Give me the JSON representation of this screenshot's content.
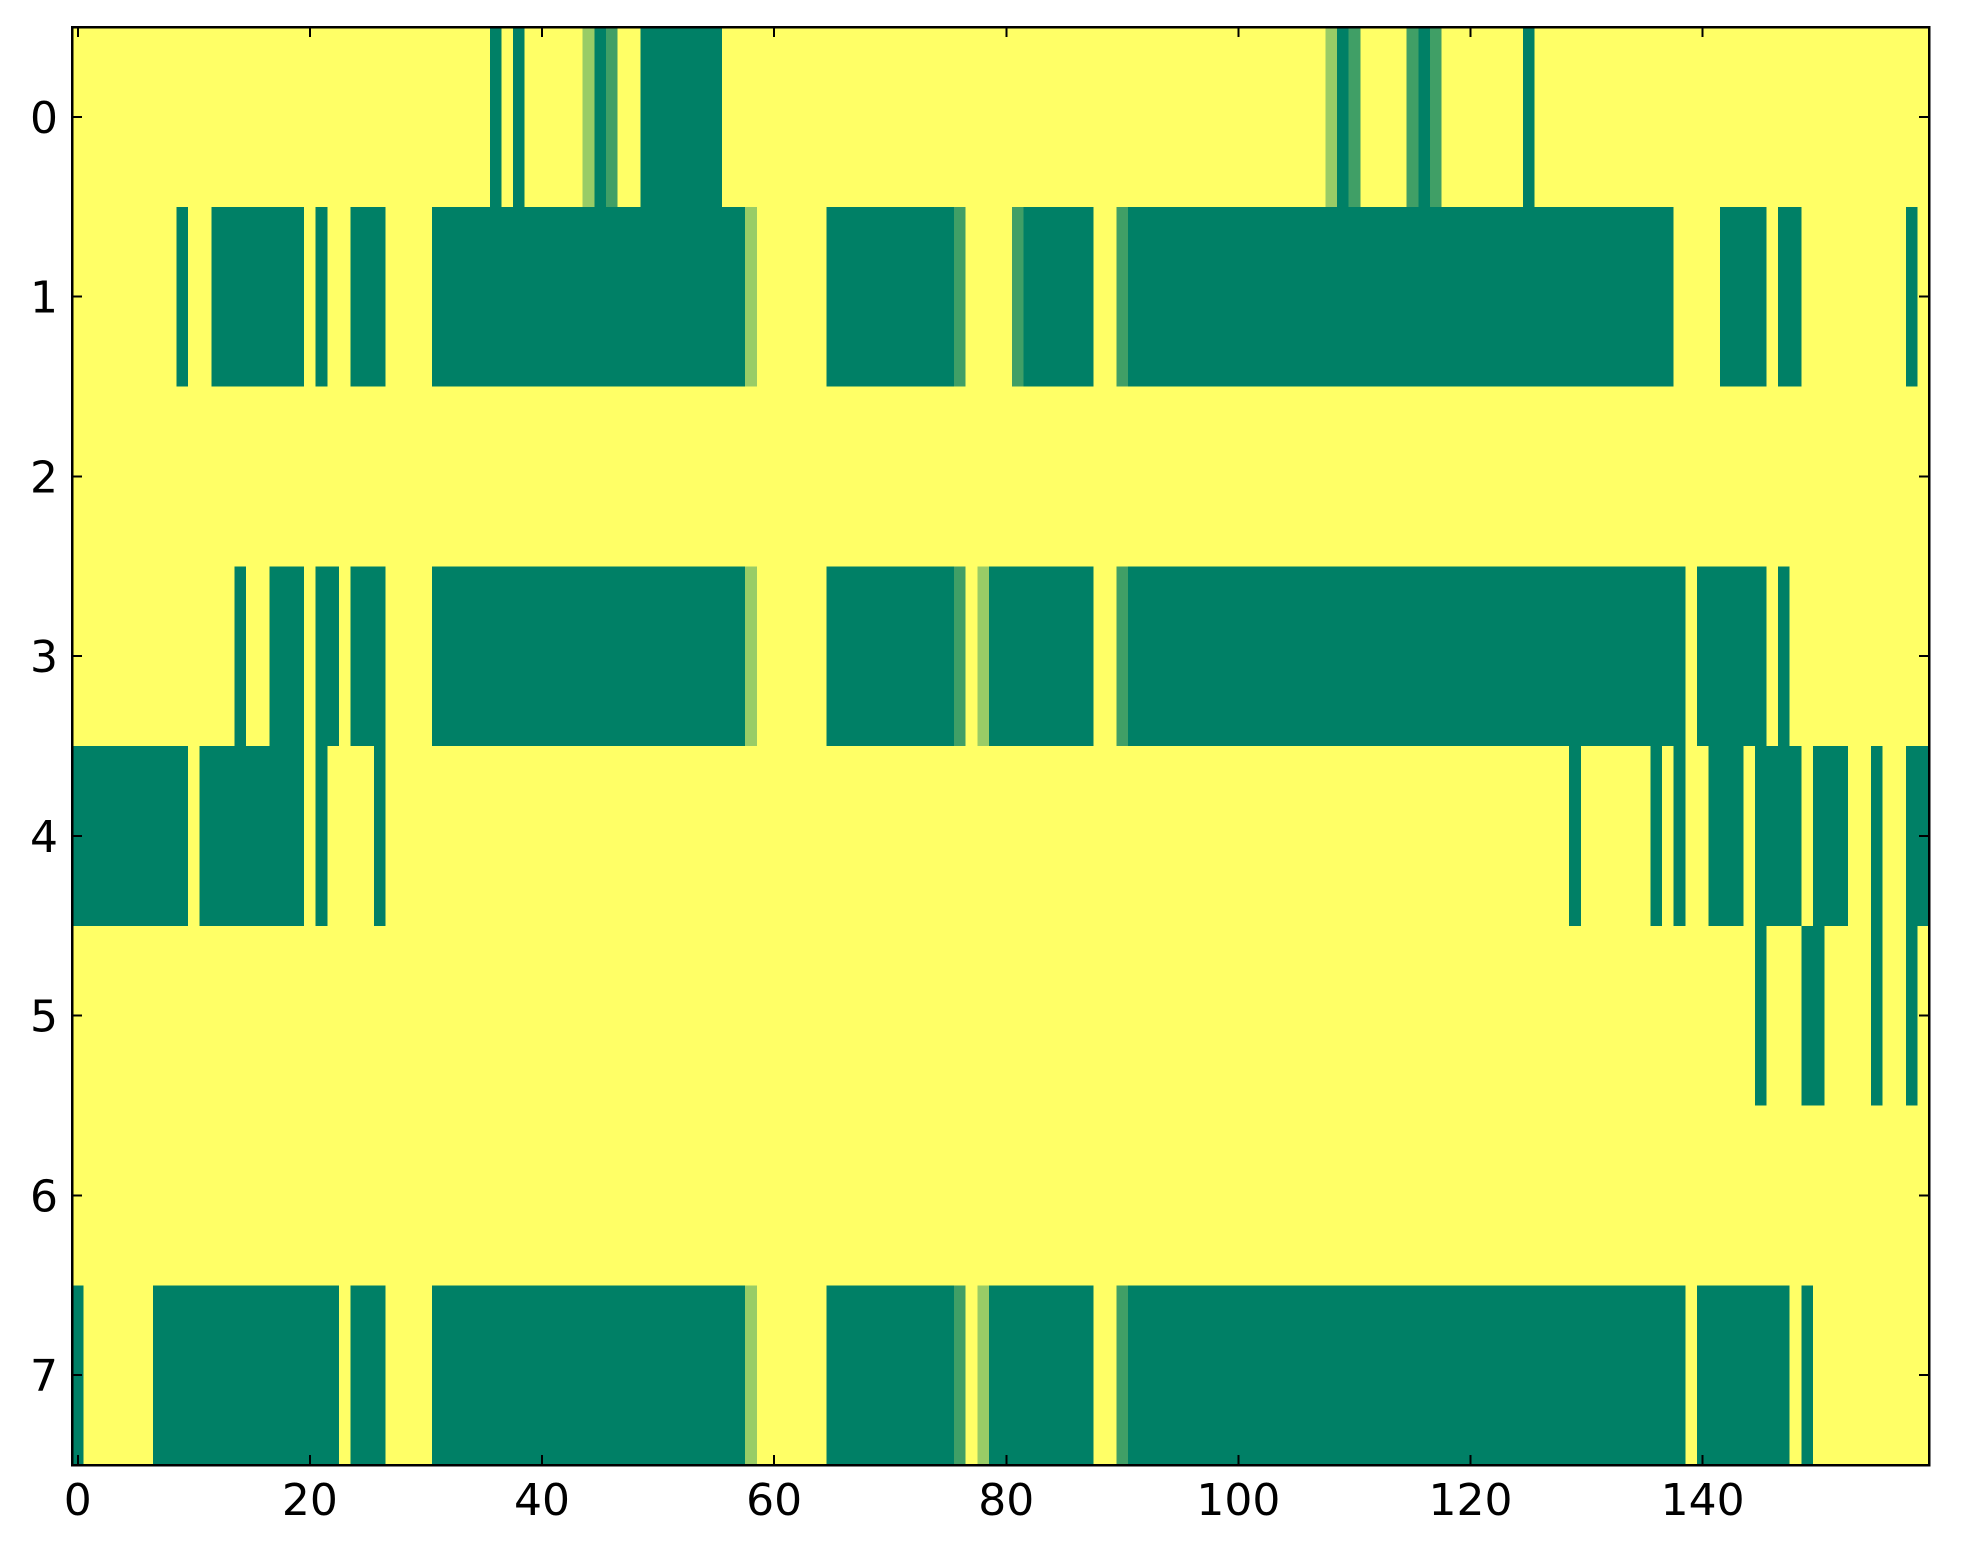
{
  "chart_data": {
    "type": "heatmap",
    "colormap": "summer",
    "xlim": [
      -0.5,
      159.5
    ],
    "ylim": [
      7.5,
      -0.5
    ],
    "xticks": [
      0,
      20,
      40,
      60,
      80,
      100,
      120,
      140
    ],
    "yticks": [
      0,
      1,
      2,
      3,
      4,
      5,
      6,
      7
    ],
    "z": [
      [
        1,
        1,
        1,
        1,
        1,
        1,
        1,
        1,
        1,
        1,
        1,
        1,
        1,
        1,
        1,
        1,
        1,
        1,
        1,
        1,
        1,
        1,
        1,
        1,
        1,
        1,
        1,
        1,
        1,
        1,
        1,
        1,
        1,
        1,
        1,
        1,
        0,
        1,
        0,
        1,
        1,
        1,
        1,
        1,
        0.6,
        0,
        0.25,
        1,
        1,
        0,
        0,
        0,
        0,
        0,
        0,
        0,
        1,
        1,
        1,
        1,
        1,
        1,
        1,
        1,
        1,
        1,
        1,
        1,
        1,
        1,
        1,
        1,
        1,
        1,
        1,
        1,
        1,
        1,
        1,
        1,
        1,
        1,
        1,
        1,
        1,
        1,
        1,
        1,
        1,
        1,
        1,
        1,
        1,
        1,
        1,
        1,
        1,
        1,
        1,
        1,
        1,
        1,
        1,
        1,
        1,
        1,
        1,
        1,
        0.6,
        0,
        0.25,
        1,
        1,
        1,
        1,
        0.25,
        0,
        0.25,
        1,
        1,
        1,
        1,
        1,
        1,
        1,
        0,
        1,
        1,
        1,
        1,
        1,
        1,
        1,
        1,
        1,
        1,
        1,
        1,
        1,
        1,
        1,
        1,
        1,
        1,
        1,
        1,
        1,
        1,
        1,
        1,
        1,
        1,
        1,
        1,
        1,
        1,
        1,
        1,
        1,
        1
      ],
      [
        1,
        1,
        1,
        1,
        1,
        1,
        1,
        1,
        1,
        0,
        1,
        1,
        0,
        0,
        0,
        0,
        0,
        0,
        0,
        0,
        1,
        0,
        1,
        1,
        0,
        0,
        0,
        1,
        1,
        1,
        1,
        0,
        0,
        0,
        0,
        0,
        0,
        0,
        0,
        0,
        0,
        0,
        0,
        0,
        0,
        0,
        0,
        0,
        0,
        0,
        0,
        0,
        0,
        0,
        0,
        0,
        0,
        0,
        0.6,
        1,
        1,
        1,
        1,
        1,
        1,
        0,
        0,
        0,
        0,
        0,
        0,
        0,
        0,
        0,
        0,
        0,
        0.25,
        1,
        1,
        1,
        1,
        0.25,
        0,
        0,
        0,
        0,
        0,
        0,
        1,
        1,
        0.25,
        0,
        0,
        0,
        0,
        0,
        0,
        0,
        0,
        0,
        0,
        0,
        0,
        0,
        0,
        0,
        0,
        0,
        0,
        0,
        0,
        0,
        0,
        0,
        0,
        0,
        0,
        0,
        0,
        0,
        0,
        0,
        0,
        0,
        0,
        0,
        0,
        0,
        0,
        0,
        0,
        0,
        0,
        0,
        0,
        0,
        0,
        0,
        1,
        1,
        1,
        1,
        0,
        0,
        0,
        0,
        1,
        0,
        0,
        1,
        1,
        1,
        1,
        1,
        1,
        1,
        1,
        1,
        0,
        1
      ],
      [
        1,
        1,
        1,
        1,
        1,
        1,
        1,
        1,
        1,
        1,
        1,
        1,
        1,
        1,
        1,
        1,
        1,
        1,
        1,
        1,
        1,
        1,
        1,
        1,
        1,
        1,
        1,
        1,
        1,
        1,
        1,
        1,
        1,
        1,
        1,
        1,
        1,
        1,
        1,
        1,
        1,
        1,
        1,
        1,
        1,
        1,
        1,
        1,
        1,
        1,
        1,
        1,
        1,
        1,
        1,
        1,
        1,
        1,
        1,
        1,
        1,
        1,
        1,
        1,
        1,
        1,
        1,
        1,
        1,
        1,
        1,
        1,
        1,
        1,
        1,
        1,
        1,
        1,
        1,
        1,
        1,
        1,
        1,
        1,
        1,
        1,
        1,
        1,
        1,
        1,
        1,
        1,
        1,
        1,
        1,
        1,
        1,
        1,
        1,
        1,
        1,
        1,
        1,
        1,
        1,
        1,
        1,
        1,
        1,
        1,
        1,
        1,
        1,
        1,
        1,
        1,
        1,
        1,
        1,
        1,
        1,
        1,
        1,
        1,
        1,
        1,
        1,
        1,
        1,
        1,
        1,
        1,
        1,
        1,
        1,
        1,
        1,
        1,
        1,
        1,
        1,
        1,
        1,
        1,
        1,
        1,
        1,
        1,
        1,
        1,
        1,
        1,
        1,
        1,
        1,
        1,
        1,
        1,
        1,
        1
      ],
      [
        1,
        1,
        1,
        1,
        1,
        1,
        1,
        1,
        1,
        1,
        1,
        1,
        1,
        1,
        0,
        1,
        1,
        0,
        0,
        0,
        1,
        0,
        0,
        1,
        0,
        0,
        0,
        1,
        1,
        1,
        1,
        0,
        0,
        0,
        0,
        0,
        0,
        0,
        0,
        0,
        0,
        0,
        0,
        0,
        0,
        0,
        0,
        0,
        0,
        0,
        0,
        0,
        0,
        0,
        0,
        0,
        0,
        0,
        0.6,
        1,
        1,
        1,
        1,
        1,
        1,
        0,
        0,
        0,
        0,
        0,
        0,
        0,
        0,
        0,
        0,
        0,
        0.25,
        1,
        0.6,
        0,
        0,
        0,
        0,
        0,
        0,
        0,
        0,
        0,
        1,
        1,
        0.25,
        0,
        0,
        0,
        0,
        0,
        0,
        0,
        0,
        0,
        0,
        0,
        0,
        0,
        0,
        0,
        0,
        0,
        0,
        0,
        0,
        0,
        0,
        0,
        0,
        0,
        0,
        0,
        0,
        0,
        0,
        0,
        0,
        0,
        0,
        0,
        0,
        0,
        0,
        0,
        0,
        0,
        0,
        0,
        0,
        0,
        0,
        0,
        0,
        1,
        0,
        0,
        0,
        0,
        0,
        0,
        1,
        0,
        1,
        1,
        1,
        1,
        1,
        1,
        1,
        1,
        1,
        1,
        1,
        1
      ],
      [
        0,
        0,
        0,
        0,
        0,
        0,
        0,
        0,
        0,
        0,
        1,
        0,
        0,
        0,
        0,
        0,
        0,
        0,
        0,
        0,
        1,
        0,
        1,
        1,
        1,
        1,
        0,
        1,
        1,
        1,
        1,
        1,
        1,
        1,
        1,
        1,
        1,
        1,
        1,
        1,
        1,
        1,
        1,
        1,
        1,
        1,
        1,
        1,
        1,
        1,
        1,
        1,
        1,
        1,
        1,
        1,
        1,
        1,
        1,
        1,
        1,
        1,
        1,
        1,
        1,
        1,
        1,
        1,
        1,
        1,
        1,
        1,
        1,
        1,
        1,
        1,
        1,
        1,
        1,
        1,
        1,
        1,
        1,
        1,
        1,
        1,
        1,
        1,
        1,
        1,
        1,
        1,
        1,
        1,
        1,
        1,
        1,
        1,
        1,
        1,
        1,
        1,
        1,
        1,
        1,
        1,
        1,
        1,
        1,
        1,
        1,
        1,
        1,
        1,
        1,
        1,
        1,
        1,
        1,
        1,
        1,
        1,
        1,
        1,
        1,
        1,
        1,
        1,
        1,
        0,
        1,
        1,
        1,
        1,
        1,
        1,
        0,
        1,
        0,
        1,
        1,
        0,
        0,
        0,
        1,
        0,
        0,
        0,
        0,
        1,
        0,
        0,
        0,
        1,
        1,
        0,
        1,
        1,
        0,
        0
      ],
      [
        1,
        1,
        1,
        1,
        1,
        1,
        1,
        1,
        1,
        1,
        1,
        1,
        1,
        1,
        1,
        1,
        1,
        1,
        1,
        1,
        1,
        1,
        1,
        1,
        1,
        1,
        1,
        1,
        1,
        1,
        1,
        1,
        1,
        1,
        1,
        1,
        1,
        1,
        1,
        1,
        1,
        1,
        1,
        1,
        1,
        1,
        1,
        1,
        1,
        1,
        1,
        1,
        1,
        1,
        1,
        1,
        1,
        1,
        1,
        1,
        1,
        1,
        1,
        1,
        1,
        1,
        1,
        1,
        1,
        1,
        1,
        1,
        1,
        1,
        1,
        1,
        1,
        1,
        1,
        1,
        1,
        1,
        1,
        1,
        1,
        1,
        1,
        1,
        1,
        1,
        1,
        1,
        1,
        1,
        1,
        1,
        1,
        1,
        1,
        1,
        1,
        1,
        1,
        1,
        1,
        1,
        1,
        1,
        1,
        1,
        1,
        1,
        1,
        1,
        1,
        1,
        1,
        1,
        1,
        1,
        1,
        1,
        1,
        1,
        1,
        1,
        1,
        1,
        1,
        1,
        1,
        1,
        1,
        1,
        1,
        1,
        1,
        1,
        1,
        1,
        1,
        1,
        1,
        1,
        1,
        0,
        1,
        1,
        1,
        0,
        0,
        1,
        1,
        1,
        1,
        0,
        1,
        1,
        0,
        1
      ],
      [
        1,
        1,
        1,
        1,
        1,
        1,
        1,
        1,
        1,
        1,
        1,
        1,
        1,
        1,
        1,
        1,
        1,
        1,
        1,
        1,
        1,
        1,
        1,
        1,
        1,
        1,
        1,
        1,
        1,
        1,
        1,
        1,
        1,
        1,
        1,
        1,
        1,
        1,
        1,
        1,
        1,
        1,
        1,
        1,
        1,
        1,
        1,
        1,
        1,
        1,
        1,
        1,
        1,
        1,
        1,
        1,
        1,
        1,
        1,
        1,
        1,
        1,
        1,
        1,
        1,
        1,
        1,
        1,
        1,
        1,
        1,
        1,
        1,
        1,
        1,
        1,
        1,
        1,
        1,
        1,
        1,
        1,
        1,
        1,
        1,
        1,
        1,
        1,
        1,
        1,
        1,
        1,
        1,
        1,
        1,
        1,
        1,
        1,
        1,
        1,
        1,
        1,
        1,
        1,
        1,
        1,
        1,
        1,
        1,
        1,
        1,
        1,
        1,
        1,
        1,
        1,
        1,
        1,
        1,
        1,
        1,
        1,
        1,
        1,
        1,
        1,
        1,
        1,
        1,
        1,
        1,
        1,
        1,
        1,
        1,
        1,
        1,
        1,
        1,
        1,
        1,
        1,
        1,
        1,
        1,
        1,
        1,
        1,
        1,
        1,
        1,
        1,
        1,
        1,
        1,
        1,
        1,
        1,
        1,
        1
      ],
      [
        0,
        1,
        1,
        1,
        1,
        1,
        1,
        0,
        0,
        0,
        0,
        0,
        0,
        0,
        0,
        0,
        0,
        0,
        0,
        0,
        0,
        0,
        0,
        1,
        0,
        0,
        0,
        1,
        1,
        1,
        1,
        0,
        0,
        0,
        0,
        0,
        0,
        0,
        0,
        0,
        0,
        0,
        0,
        0,
        0,
        0,
        0,
        0,
        0,
        0,
        0,
        0,
        0,
        0,
        0,
        0,
        0,
        0,
        0.6,
        1,
        1,
        1,
        1,
        1,
        1,
        0,
        0,
        0,
        0,
        0,
        0,
        0,
        0,
        0,
        0,
        0,
        0.25,
        1,
        0.6,
        0,
        0,
        0,
        0,
        0,
        0,
        0,
        0,
        0,
        1,
        1,
        0.25,
        0,
        0,
        0,
        0,
        0,
        0,
        0,
        0,
        0,
        0,
        0,
        0,
        0,
        0,
        0,
        0,
        0,
        0,
        0,
        0,
        0,
        0,
        0,
        0,
        0,
        0,
        0,
        0,
        0,
        0,
        0,
        0,
        0,
        0,
        0,
        0,
        0,
        0,
        0,
        0,
        0,
        0,
        0,
        0,
        0,
        0,
        0,
        0,
        1,
        0,
        0,
        0,
        0,
        0,
        0,
        0,
        0,
        1,
        0,
        1,
        1,
        1,
        1,
        1,
        1,
        1,
        1,
        1,
        1
      ]
    ]
  }
}
